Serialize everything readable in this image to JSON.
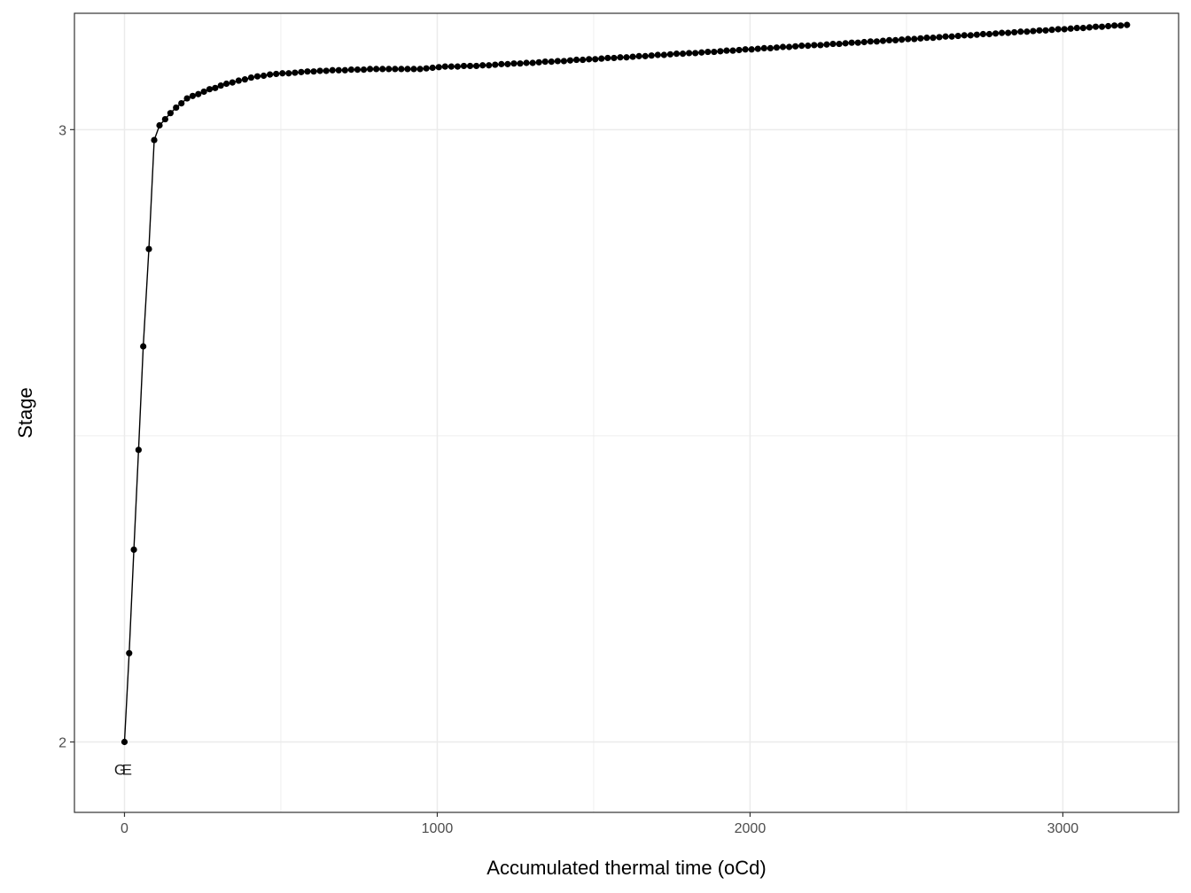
{
  "chart_data": {
    "type": "scatter",
    "title": "",
    "xlabel": "Accumulated thermal time (oCd)",
    "ylabel": "Stage",
    "xlim": [
      -160,
      3370
    ],
    "ylim": [
      1.885,
      3.19
    ],
    "x_ticks": [
      0,
      1000,
      2000,
      3000
    ],
    "x_tick_labels": [
      "0",
      "1000",
      "2000",
      "3000"
    ],
    "y_ticks": [
      2,
      3
    ],
    "y_tick_labels": [
      "2",
      "3"
    ],
    "x_minor_grid": [
      500,
      1500,
      2500
    ],
    "y_minor_grid": [
      2.5
    ],
    "grid": true,
    "legend": "none",
    "colors": {
      "points": "#000000",
      "line": "#000000",
      "grid": "#ebebeb",
      "frame": "#333333"
    },
    "series": [
      {
        "x": [
          0,
          15,
          30,
          45,
          60,
          78,
          95,
          112,
          130,
          147,
          165,
          182,
          200,
          218,
          236,
          254,
          272,
          290,
          308,
          326,
          345,
          365,
          385,
          405,
          425,
          445,
          465,
          485,
          505,
          525,
          545,
          565,
          585,
          605,
          625,
          645,
          665,
          685,
          705,
          725,
          745,
          765,
          785,
          805,
          825,
          845,
          865,
          885,
          905,
          925,
          945,
          965,
          985,
          1005,
          1025,
          1045,
          1065,
          1085,
          1105,
          1125,
          1145,
          1165,
          1185,
          1205,
          1225,
          1245,
          1265,
          1285,
          1305,
          1325,
          1345,
          1365,
          1385,
          1405,
          1425,
          1445,
          1465,
          1485,
          1505,
          1525,
          1545,
          1565,
          1585,
          1605,
          1625,
          1645,
          1665,
          1685,
          1705,
          1725,
          1745,
          1765,
          1785,
          1805,
          1825,
          1845,
          1865,
          1885,
          1905,
          1925,
          1945,
          1965,
          1985,
          2005,
          2025,
          2045,
          2065,
          2085,
          2105,
          2125,
          2145,
          2165,
          2185,
          2205,
          2225,
          2245,
          2265,
          2285,
          2305,
          2325,
          2345,
          2365,
          2385,
          2405,
          2425,
          2445,
          2465,
          2485,
          2505,
          2525,
          2545,
          2565,
          2585,
          2605,
          2625,
          2645,
          2665,
          2685,
          2705,
          2725,
          2745,
          2765,
          2785,
          2805,
          2825,
          2845,
          2865,
          2885,
          2905,
          2925,
          2945,
          2965,
          2985,
          3005,
          3025,
          3045,
          3065,
          3085,
          3105,
          3125,
          3145,
          3165,
          3185,
          3205
        ],
        "y": [
          2.0,
          2.145,
          2.314,
          2.477,
          2.646,
          2.805,
          2.983,
          3.007,
          3.017,
          3.027,
          3.036,
          3.043,
          3.051,
          3.055,
          3.058,
          3.062,
          3.066,
          3.068,
          3.072,
          3.075,
          3.077,
          3.08,
          3.082,
          3.085,
          3.087,
          3.088,
          3.09,
          3.091,
          3.092,
          3.092,
          3.093,
          3.094,
          3.095,
          3.095,
          3.096,
          3.096,
          3.097,
          3.097,
          3.097,
          3.098,
          3.098,
          3.098,
          3.099,
          3.099,
          3.099,
          3.099,
          3.099,
          3.099,
          3.099,
          3.099,
          3.099,
          3.1,
          3.101,
          3.102,
          3.103,
          3.103,
          3.103,
          3.104,
          3.104,
          3.104,
          3.105,
          3.105,
          3.106,
          3.107,
          3.107,
          3.108,
          3.108,
          3.109,
          3.109,
          3.11,
          3.111,
          3.111,
          3.112,
          3.112,
          3.113,
          3.114,
          3.114,
          3.115,
          3.115,
          3.116,
          3.117,
          3.117,
          3.118,
          3.118,
          3.119,
          3.12,
          3.12,
          3.121,
          3.122,
          3.122,
          3.123,
          3.124,
          3.124,
          3.125,
          3.125,
          3.126,
          3.127,
          3.127,
          3.128,
          3.129,
          3.129,
          3.13,
          3.131,
          3.131,
          3.132,
          3.133,
          3.133,
          3.134,
          3.135,
          3.135,
          3.136,
          3.137,
          3.137,
          3.138,
          3.138,
          3.139,
          3.14,
          3.14,
          3.141,
          3.142,
          3.142,
          3.143,
          3.144,
          3.144,
          3.145,
          3.146,
          3.146,
          3.147,
          3.148,
          3.148,
          3.149,
          3.15,
          3.15,
          3.151,
          3.152,
          3.152,
          3.153,
          3.154,
          3.154,
          3.155,
          3.156,
          3.156,
          3.157,
          3.158,
          3.158,
          3.159,
          3.16,
          3.16,
          3.161,
          3.162,
          3.162,
          3.163,
          3.164,
          3.164,
          3.165,
          3.166,
          3.166,
          3.167,
          3.168,
          3.168,
          3.169,
          3.17,
          3.17,
          3.171
        ]
      }
    ],
    "annotations": [
      {
        "text": "G",
        "x": -14,
        "y": 1.955
      },
      {
        "text": "E",
        "x": 8,
        "y": 1.955
      }
    ]
  }
}
